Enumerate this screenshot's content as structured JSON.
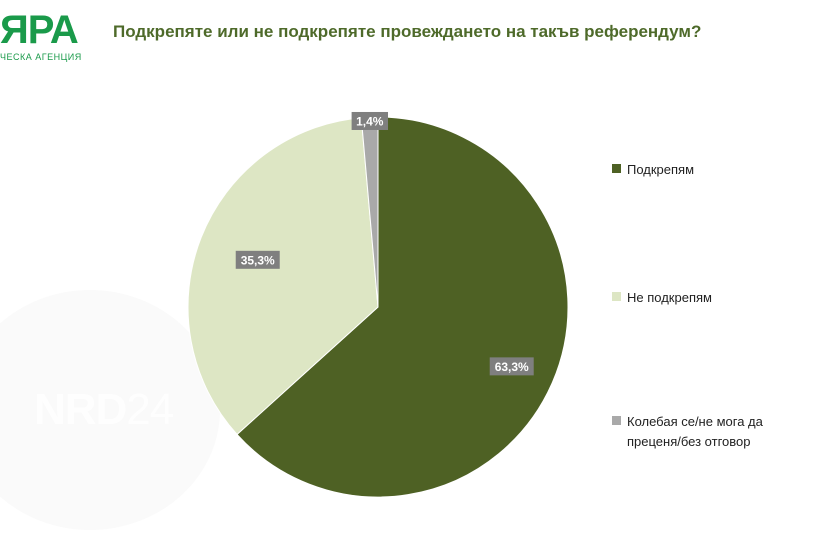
{
  "header": {
    "logo_text": "ЯРА",
    "logo_subtext": "ЧЕСКА АГЕНЦИЯ",
    "title": "Подкрепяте или не подкрепяте провеждането на такъв референдум?"
  },
  "watermark": {
    "bold": "NRD",
    "thin": "24"
  },
  "chart_data": {
    "type": "pie",
    "title": "Подкрепяте или не подкрепяте провеждането на такъв референдум?",
    "categories": [
      "Подкрепям",
      "Не подкрепям",
      "Колебая се/не мога да преценя/без отговор"
    ],
    "values": [
      63.3,
      35.3,
      1.4
    ],
    "value_labels": [
      "63,3%",
      "35,3%",
      "1,4%"
    ],
    "colors": [
      "#4e6124",
      "#dde6c4",
      "#a9a9a9"
    ],
    "start_angle": "12 o'clock",
    "direction": "clockwise",
    "legend_position": "right"
  }
}
